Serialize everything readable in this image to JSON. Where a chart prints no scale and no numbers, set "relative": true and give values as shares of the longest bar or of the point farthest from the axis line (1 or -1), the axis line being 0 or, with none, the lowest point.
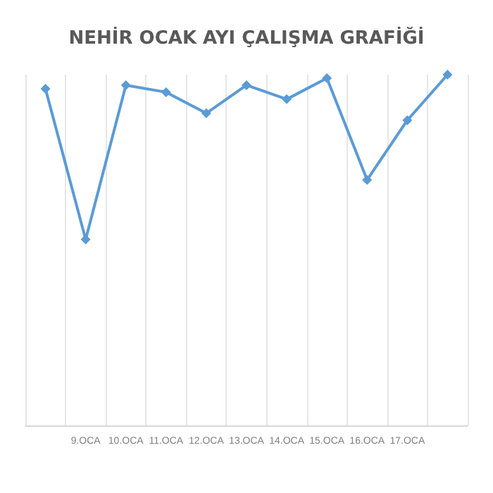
{
  "chart_data": {
    "type": "line",
    "title": "NEHİR OCAK AYI ÇALIŞMA GRAFİĞİ",
    "categories": [
      null,
      "9.OCA",
      "10.OCA",
      "11.OCA",
      "12.OCA",
      "13.OCA",
      "14.OCA",
      "15.OCA",
      "16.OCA",
      "17.OCA",
      null
    ],
    "series": [
      {
        "color": "#5b9bd5",
        "values": [
          0.96,
          0.53,
          0.97,
          0.95,
          0.89,
          0.97,
          0.93,
          0.99,
          0.7,
          0.87,
          1
        ]
      }
    ],
    "relative": true,
    "grid": "x",
    "marker": "diamond",
    "line_style": "solid"
  }
}
